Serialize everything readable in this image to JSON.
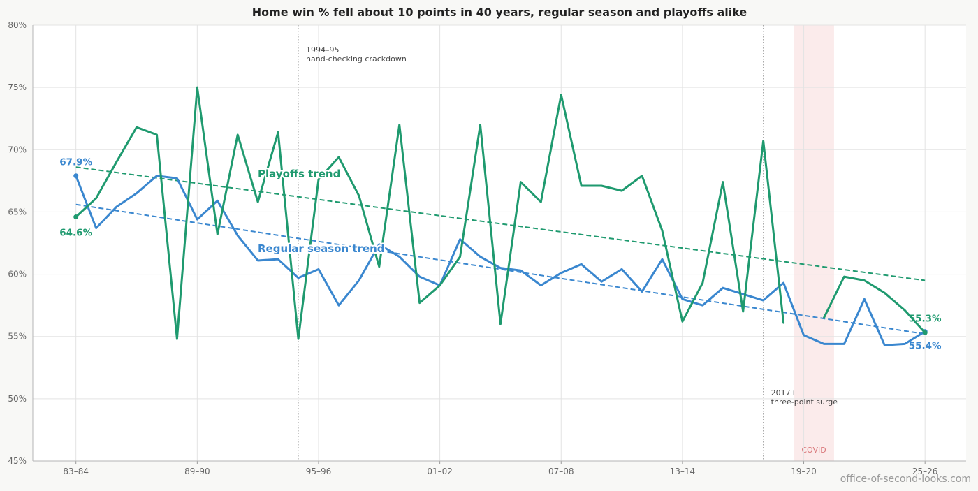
{
  "chart_data": {
    "type": "line",
    "title": "Home win % fell about 10 points in 40 years, regular season and playoffs alike",
    "xlabel": "",
    "ylabel": "",
    "ylim": [
      45,
      80
    ],
    "yticks": [
      "45%",
      "50%",
      "55%",
      "60%",
      "65%",
      "70%",
      "75%",
      "80%"
    ],
    "x_tick_labels": [
      "83–84",
      "89–90",
      "95–96",
      "01–02",
      "07–08",
      "13–14",
      "19–20",
      "25–26"
    ],
    "series": [
      {
        "key": "regular",
        "color": "#3a87cf",
        "values": [
          67.9,
          63.7,
          65.4,
          66.5,
          67.9,
          67.7,
          64.4,
          65.9,
          63.1,
          61.1,
          61.2,
          59.7,
          60.4,
          57.5,
          59.5,
          62.4,
          61.4,
          59.8,
          59.1,
          62.8,
          61.4,
          60.5,
          60.3,
          59.1,
          60.1,
          60.8,
          59.4,
          60.4,
          58.6,
          61.2,
          58.0,
          57.5,
          58.9,
          58.4,
          57.9,
          59.3,
          55.1,
          54.4,
          54.4,
          58.0,
          54.3,
          54.4,
          55.4
        ]
      },
      {
        "key": "playoffs",
        "color": "#1f9a6f",
        "values": [
          64.6,
          66.1,
          69.0,
          71.8,
          71.2,
          54.8,
          75.0,
          63.2,
          71.2,
          65.8,
          71.4,
          54.8,
          67.6,
          69.4,
          66.3,
          60.6,
          72.0,
          57.7,
          59.1,
          61.4,
          72.0,
          56.0,
          67.4,
          65.8,
          74.4,
          67.1,
          67.1,
          66.7,
          67.9,
          63.5,
          56.2,
          59.3,
          67.4,
          57.0,
          70.7,
          56.1,
          null,
          56.5,
          59.8,
          59.5,
          58.5,
          57.1,
          55.3
        ]
      }
    ],
    "trends": [
      {
        "label": "Playoffs trend",
        "series": "playoffs",
        "start": 68.6,
        "end": 59.5,
        "color": "#1f9a6f"
      },
      {
        "label": "Regular season trend",
        "series": "regular",
        "start": 65.6,
        "end": 55.2,
        "color": "#3a87cf"
      }
    ],
    "end_labels": {
      "regular_start": "67.9%",
      "playoffs_start": "64.6%",
      "playoffs_end": "55.3%",
      "regular_end": "55.4%"
    },
    "annotations": [
      {
        "key": "handcheck",
        "season_index": 11,
        "line1": "1994–95",
        "line2": "hand-checking crackdown"
      },
      {
        "key": "threepoint",
        "season_index": 34,
        "line1": "2017+",
        "line2": "three-point surge"
      }
    ],
    "covid_band": {
      "label": "COVID",
      "from_index": 35.5,
      "to_index": 37.5
    },
    "grid": true,
    "legend": "inline labels"
  },
  "credit": "office-of-second-looks.com"
}
